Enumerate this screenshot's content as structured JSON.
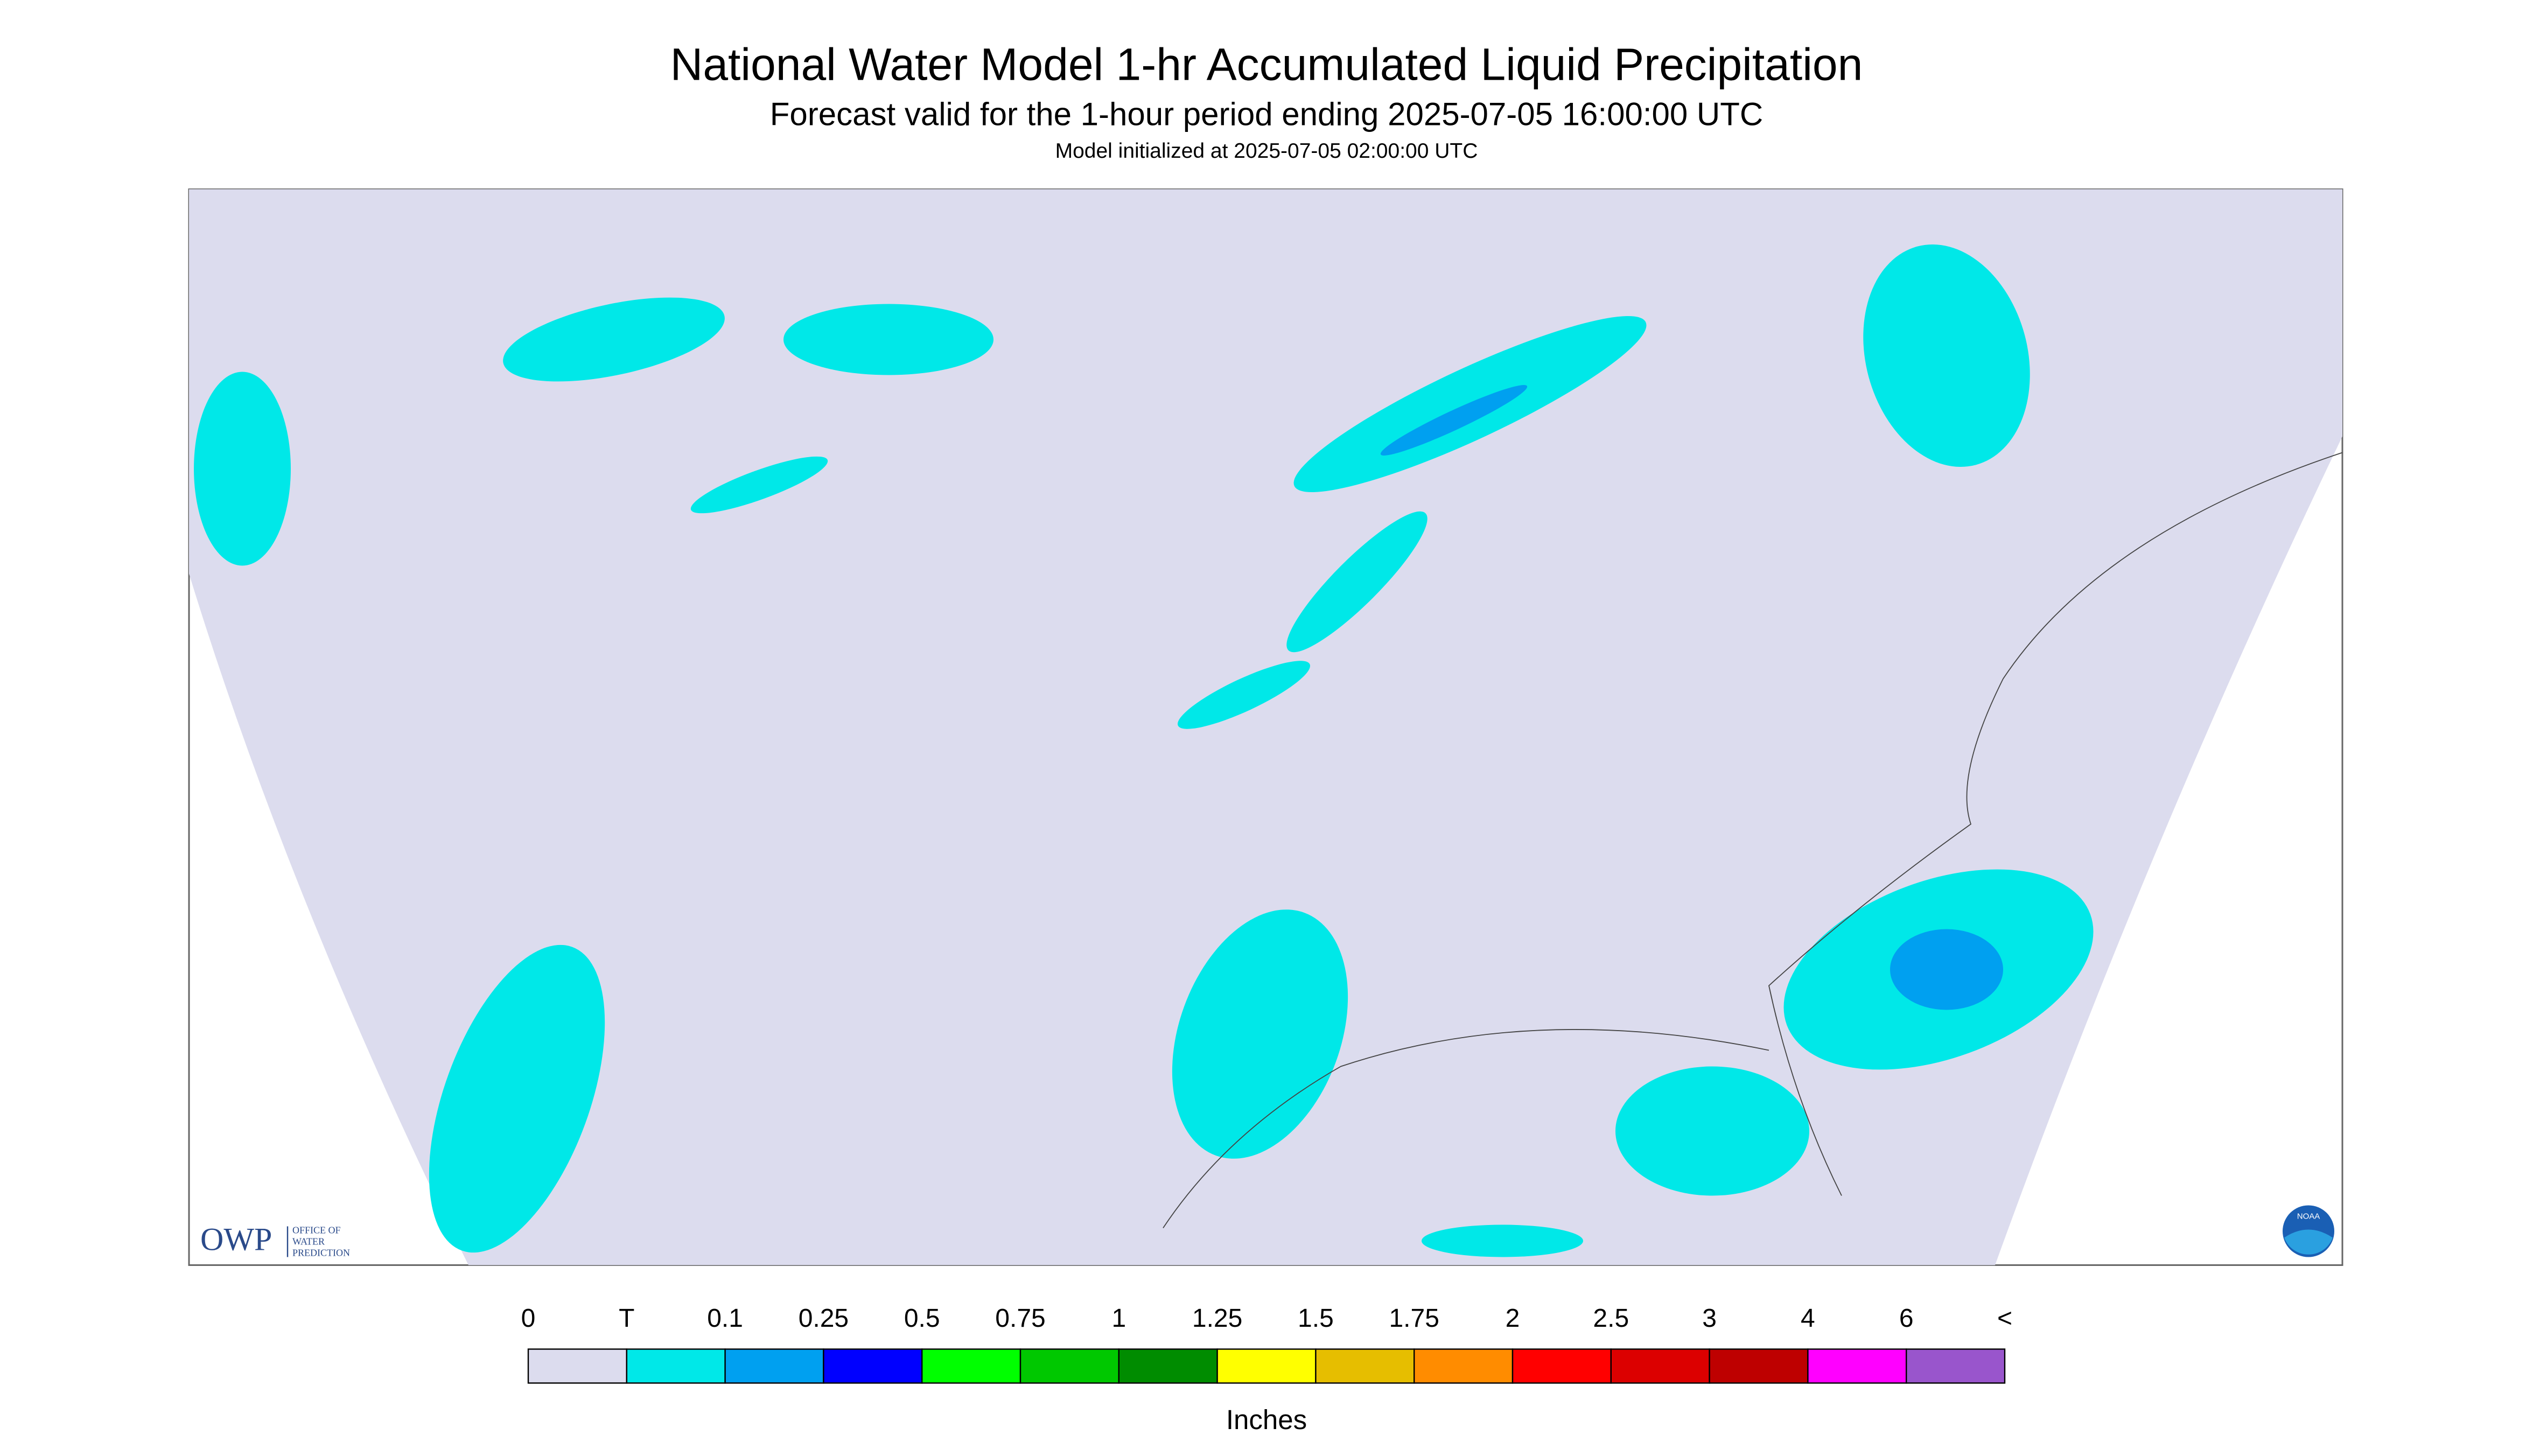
{
  "header": {
    "title": "National Water Model 1-hr Accumulated Liquid Precipitation",
    "subtitle": "Forecast valid for the 1-hour period ending 2025-07-05 16:00:00 UTC",
    "init": "Model initialized at 2025-07-05 02:00:00 UTC"
  },
  "logos": {
    "owp": "OWP",
    "owp_lines": [
      "OFFICE OF",
      "WATER",
      "PREDICTION"
    ],
    "noaa": "NOAA"
  },
  "legend": {
    "labels": [
      "0",
      "T",
      "0.1",
      "0.25",
      "0.5",
      "0.75",
      "1",
      "1.25",
      "1.5",
      "1.75",
      "2",
      "2.5",
      "3",
      "4",
      "6",
      "<"
    ],
    "colors": [
      "#dcdcee",
      "#00e8e8",
      "#00a0f0",
      "#0000ff",
      "#00ff00",
      "#00c800",
      "#008c00",
      "#ffff00",
      "#e6be00",
      "#ff8c00",
      "#ff0000",
      "#dc0000",
      "#be0000",
      "#ff00ff",
      "#9955cc"
    ],
    "unit": "Inches"
  }
}
